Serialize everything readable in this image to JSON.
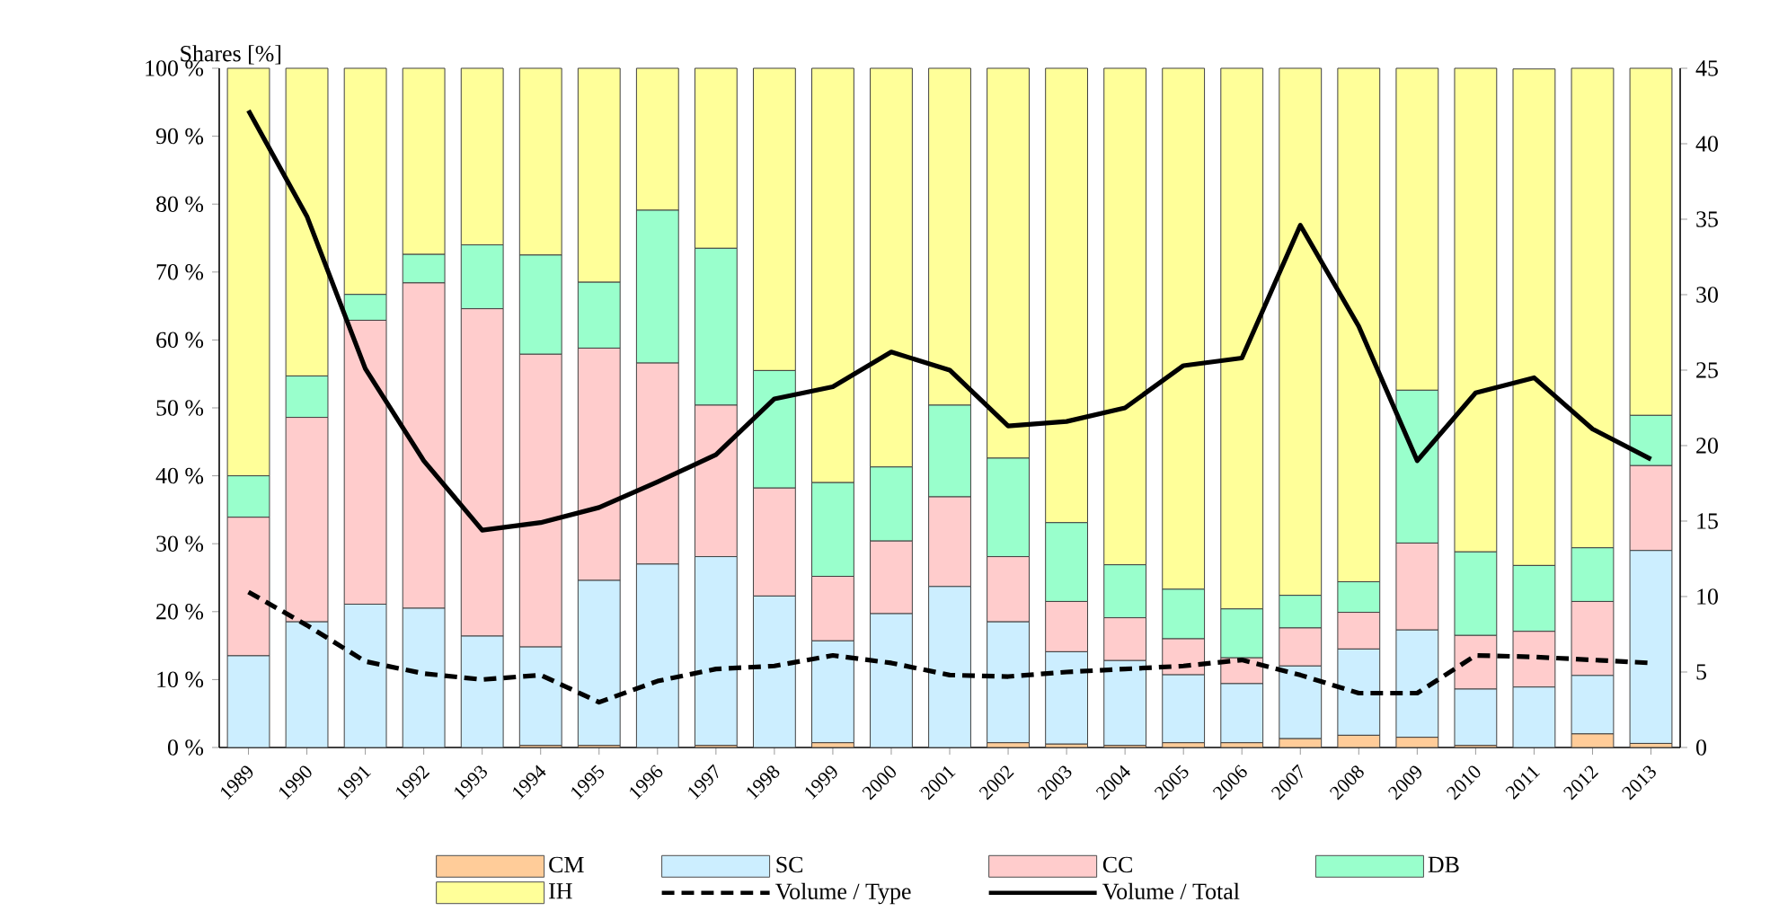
{
  "chart_data": {
    "type": "bar",
    "stacked": true,
    "ylabel": "Shares [%]",
    "categories": [
      "1989",
      "1990",
      "1991",
      "1992",
      "1993",
      "1994",
      "1995",
      "1996",
      "1997",
      "1998",
      "1999",
      "2000",
      "2001",
      "2002",
      "2003",
      "2004",
      "2005",
      "2006",
      "2007",
      "2008",
      "2009",
      "2010",
      "2011",
      "2012",
      "2013"
    ],
    "series": [
      {
        "name": "CM",
        "color": "#ffcc99",
        "values": [
          0,
          0,
          0,
          0,
          0,
          0.3,
          0.3,
          0,
          0.3,
          0,
          0.7,
          0,
          0,
          0.7,
          0.5,
          0.3,
          0.7,
          0.7,
          1.3,
          1.8,
          1.5,
          0.3,
          0,
          2.0,
          0.6
        ]
      },
      {
        "name": "SC",
        "color": "#cceeff",
        "values": [
          13.5,
          18.5,
          21.1,
          20.5,
          16.4,
          14.5,
          24.3,
          27.0,
          27.8,
          22.3,
          15.0,
          19.7,
          23.7,
          17.8,
          13.6,
          12.5,
          10.0,
          8.7,
          10.7,
          12.7,
          15.8,
          8.3,
          8.9,
          8.6,
          28.4
        ]
      },
      {
        "name": "CC",
        "color": "#ffcccc",
        "values": [
          20.4,
          30.1,
          41.8,
          47.9,
          48.2,
          43.1,
          34.2,
          29.6,
          22.3,
          15.9,
          9.5,
          10.7,
          13.2,
          9.6,
          7.4,
          6.3,
          5.3,
          3.8,
          5.6,
          5.4,
          12.8,
          7.9,
          8.2,
          10.9,
          12.5
        ]
      },
      {
        "name": "DB",
        "color": "#99ffcc",
        "values": [
          6.1,
          6.1,
          3.8,
          4.2,
          9.4,
          14.6,
          9.7,
          22.5,
          23.1,
          17.3,
          13.8,
          10.9,
          13.5,
          14.5,
          11.6,
          7.8,
          7.3,
          7.2,
          4.8,
          4.5,
          22.5,
          12.3,
          9.7,
          7.9,
          7.4
        ]
      },
      {
        "name": "IH",
        "color": "#ffff99",
        "values": [
          60.0,
          45.3,
          33.3,
          27.4,
          26.0,
          27.5,
          31.5,
          20.9,
          26.5,
          44.5,
          61.0,
          58.7,
          49.6,
          57.4,
          66.9,
          73.1,
          76.7,
          79.6,
          77.6,
          75.6,
          47.4,
          71.2,
          73.1,
          70.6,
          51.1
        ]
      },
      {
        "name": "Volume / Type",
        "type": "line",
        "axis": "y2",
        "line_style": "dashed",
        "color": "#000000",
        "values": [
          10.3,
          8.1,
          5.7,
          4.9,
          4.5,
          4.8,
          3.0,
          4.4,
          5.2,
          5.4,
          6.1,
          5.6,
          4.8,
          4.7,
          5.0,
          5.2,
          5.4,
          5.8,
          4.8,
          3.6,
          3.6,
          6.1,
          6.0,
          5.8,
          5.6
        ]
      },
      {
        "name": "Volume / Total",
        "type": "line",
        "axis": "y2",
        "line_style": "solid",
        "color": "#000000",
        "values": [
          42.2,
          35.2,
          25.1,
          19.0,
          14.4,
          14.9,
          15.9,
          17.6,
          19.4,
          23.1,
          23.9,
          26.2,
          25.0,
          21.3,
          21.6,
          22.5,
          25.3,
          25.8,
          34.6,
          27.9,
          19.0,
          23.5,
          24.5,
          21.1,
          19.1
        ]
      }
    ],
    "ylim": [
      0,
      100
    ],
    "yticks": [
      {
        "value": 0,
        "label": "0 %"
      },
      {
        "value": 10,
        "label": "10 %"
      },
      {
        "value": 20,
        "label": "20 %"
      },
      {
        "value": 30,
        "label": "30 %"
      },
      {
        "value": 40,
        "label": "40 %"
      },
      {
        "value": 50,
        "label": "50 %"
      },
      {
        "value": 60,
        "label": "60 %"
      },
      {
        "value": 70,
        "label": "70 %"
      },
      {
        "value": 80,
        "label": "80 %"
      },
      {
        "value": 90,
        "label": "90 %"
      },
      {
        "value": 100,
        "label": "100 %"
      }
    ],
    "y2lim": [
      0,
      45
    ],
    "y2ticks": [
      0,
      5,
      10,
      15,
      20,
      25,
      30,
      35,
      40,
      45
    ],
    "legend": "bottom"
  }
}
